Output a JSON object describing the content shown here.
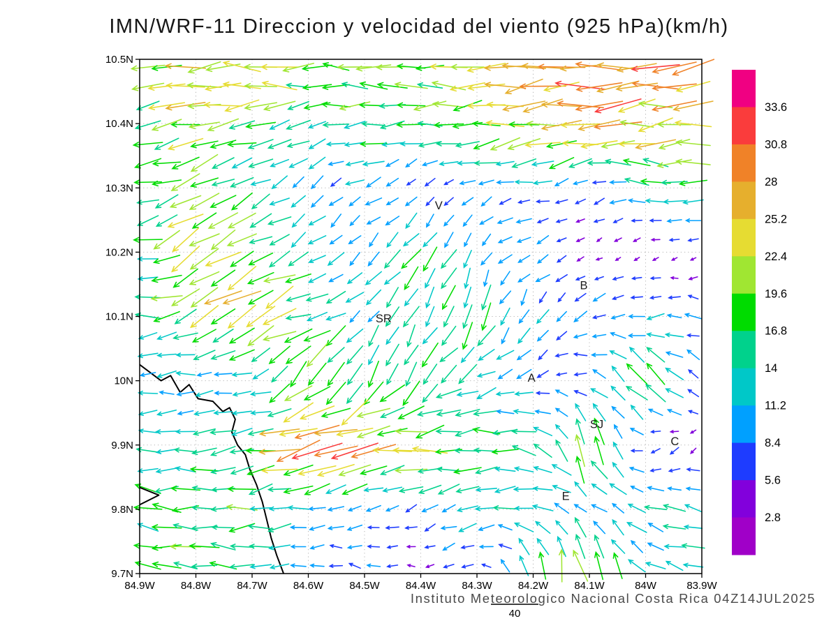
{
  "title": "IMN/WRF-11 Direccion y velocidad del viento (925 hPa)(km/h)",
  "footer": "Instituto Meteorologico Nacional Costa Rica 04Z14JUL2025",
  "chart_data": {
    "type": "vector_field",
    "title": "IMN/WRF-11 Direccion y velocidad del viento (925 hPa)(km/h)",
    "subtitle": "Instituto Meteorologico Nacional Costa Rica 04Z14JUL2025",
    "units": "km/h",
    "level": "925 hPa",
    "grid": true,
    "x_axis": {
      "range": [
        -84.9,
        -83.9
      ],
      "ticks": [
        {
          "lon": -84.9,
          "label": "84.9W"
        },
        {
          "lon": -84.8,
          "label": "84.8W"
        },
        {
          "lon": -84.7,
          "label": "84.7W"
        },
        {
          "lon": -84.6,
          "label": "84.6W"
        },
        {
          "lon": -84.5,
          "label": "84.5W"
        },
        {
          "lon": -84.4,
          "label": "84.4W"
        },
        {
          "lon": -84.3,
          "label": "84.3W"
        },
        {
          "lon": -84.2,
          "label": "84.2W"
        },
        {
          "lon": -84.1,
          "label": "84.1W"
        },
        {
          "lon": -84.0,
          "label": "84W"
        },
        {
          "lon": -83.9,
          "label": "83.9W"
        }
      ]
    },
    "y_axis": {
      "range": [
        9.7,
        10.5
      ],
      "ticks": [
        {
          "lat": 10.5,
          "label": "10.5N"
        },
        {
          "lat": 10.4,
          "label": "10.4N"
        },
        {
          "lat": 10.3,
          "label": "10.3N"
        },
        {
          "lat": 10.2,
          "label": "10.2N"
        },
        {
          "lat": 10.1,
          "label": "10.1N"
        },
        {
          "lat": 10.0,
          "label": "10N"
        },
        {
          "lat": 9.9,
          "label": "9.9N"
        },
        {
          "lat": 9.8,
          "label": "9.8N"
        },
        {
          "lat": 9.7,
          "label": "9.7N"
        }
      ]
    },
    "colorbar": {
      "levels": [
        2.8,
        5.6,
        8.4,
        11.2,
        14,
        16.8,
        19.6,
        22.4,
        25.2,
        28,
        30.8,
        33.6
      ],
      "labels": [
        "33.6",
        "30.8",
        "28",
        "25.2",
        "22.4",
        "19.6",
        "16.8",
        "14",
        "11.2",
        "8.4",
        "5.6",
        "2.8"
      ],
      "colors": [
        "#a000c8",
        "#8200dc",
        "#1e3cff",
        "#00a0ff",
        "#00c8c8",
        "#00d28c",
        "#00dc00",
        "#a0e632",
        "#e6dc32",
        "#e6af2d",
        "#f08228",
        "#fa3c3c",
        "#f00082"
      ]
    },
    "reference_vector": {
      "label": "40",
      "value": 40
    },
    "stations": [
      {
        "label": "V",
        "lon": -84.368,
        "lat": 10.272
      },
      {
        "label": "B",
        "lon": -84.11,
        "lat": 10.148
      },
      {
        "label": "SR",
        "lon": -84.466,
        "lat": 10.096
      },
      {
        "label": "A",
        "lon": -84.203,
        "lat": 10.004
      },
      {
        "label": "SJ",
        "lon": -84.087,
        "lat": 9.932
      },
      {
        "label": "C",
        "lon": -83.948,
        "lat": 9.905
      },
      {
        "label": "E",
        "lon": -84.142,
        "lat": 9.82
      }
    ],
    "coastlines": [
      [
        [
          -84.9,
          10.025
        ],
        [
          -84.862,
          10.0
        ],
        [
          -84.845,
          10.008
        ],
        [
          -84.828,
          9.982
        ],
        [
          -84.812,
          9.994
        ],
        [
          -84.796,
          9.972
        ],
        [
          -84.77,
          9.968
        ],
        [
          -84.752,
          9.952
        ],
        [
          -84.74,
          9.958
        ],
        [
          -84.73,
          9.94
        ],
        [
          -84.736,
          9.92
        ],
        [
          -84.726,
          9.9
        ],
        [
          -84.712,
          9.885
        ],
        [
          -84.704,
          9.862
        ],
        [
          -84.692,
          9.838
        ],
        [
          -84.682,
          9.812
        ],
        [
          -84.674,
          9.784
        ],
        [
          -84.666,
          9.755
        ],
        [
          -84.656,
          9.728
        ],
        [
          -84.644,
          9.7
        ]
      ],
      [
        [
          -84.9,
          9.834
        ],
        [
          -84.866,
          9.822
        ],
        [
          -84.9,
          9.807
        ]
      ]
    ],
    "wind_grid": {
      "lats": [
        10.5,
        10.4,
        10.3,
        10.2,
        10.1,
        10.0,
        9.9,
        9.8,
        9.7
      ],
      "lons": [
        -84.9,
        -84.8,
        -84.7,
        -84.6,
        -84.5,
        -84.4,
        -84.3,
        -84.2,
        -84.1,
        -84.0,
        -83.9
      ],
      "u": [
        [
          -18,
          -26,
          -24,
          -20,
          -19,
          -20,
          -23,
          -27,
          -29,
          -28,
          -24
        ],
        [
          -17,
          -22,
          -19,
          -13,
          -17,
          -18,
          -19,
          -23,
          -27,
          -26,
          -23
        ],
        [
          -15,
          -20,
          -10,
          -7,
          -9,
          -3,
          -8,
          -9,
          -6,
          -15,
          -17
        ],
        [
          -14,
          -20,
          -18,
          -9,
          -8,
          -10,
          -6,
          -8,
          -3,
          -2,
          -3
        ],
        [
          -14,
          -18,
          -22,
          -16,
          -7,
          -8,
          -6,
          -5,
          -9,
          -10,
          -9
        ],
        [
          -11,
          -10,
          -9,
          -14,
          -8,
          -10,
          -14,
          -8,
          -7,
          -14,
          -6
        ],
        [
          -12,
          -14,
          -16,
          -32,
          -28,
          -24,
          -16,
          -14,
          -6,
          -6,
          -3
        ],
        [
          -16,
          -18,
          -17,
          -10,
          -8,
          -8,
          -12,
          -14,
          -8,
          -12,
          -13
        ],
        [
          -15,
          -18,
          -15,
          -9,
          -8,
          -4,
          -7,
          -4,
          -3,
          -10,
          -12
        ]
      ],
      "v": [
        [
          -2,
          -4,
          2,
          0,
          0,
          0,
          0,
          -2,
          -3,
          -3,
          -2
        ],
        [
          -3,
          -5,
          -6,
          -2,
          -1,
          -2,
          -3,
          -4,
          -4,
          -3,
          -2
        ],
        [
          -2,
          -8,
          -5,
          -7,
          -4,
          -5,
          -3,
          -2,
          -4,
          3,
          2
        ],
        [
          -3,
          -14,
          -10,
          -6,
          -8,
          -12,
          -9,
          -4,
          -2,
          -2,
          -1
        ],
        [
          0,
          -8,
          -10,
          -6,
          -8,
          -14,
          -16,
          -10,
          -3,
          -2,
          2
        ],
        [
          0,
          -1,
          -2,
          -16,
          -16,
          -14,
          -6,
          -4,
          2,
          16,
          4
        ],
        [
          0,
          -2,
          -4,
          -6,
          -4,
          -2,
          0,
          4,
          22,
          -4,
          -3
        ],
        [
          2,
          0,
          -2,
          -2,
          -2,
          -4,
          -4,
          2,
          6,
          4,
          2
        ],
        [
          2,
          2,
          0,
          0,
          2,
          0,
          -2,
          16,
          24,
          6,
          2
        ]
      ]
    }
  }
}
